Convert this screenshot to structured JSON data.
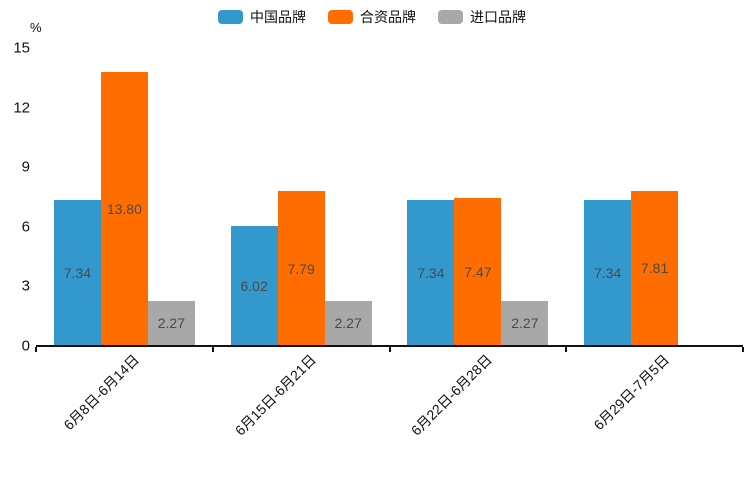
{
  "chart_data": {
    "type": "bar",
    "title": "",
    "xlabel": "",
    "ylabel": "%",
    "categories": [
      "6月8日-6月14日",
      "6月15日-6月21日",
      "6月22日-6月28日",
      "6月29日-7月5日"
    ],
    "series": [
      {
        "name": "中国品牌",
        "color": "#3398cc",
        "values": [
          7.34,
          6.02,
          7.34,
          7.34
        ],
        "labels": [
          "7.34",
          "6.02",
          "7.34",
          "7.34"
        ]
      },
      {
        "name": "合资品牌",
        "color": "#ff6d00",
        "values": [
          13.8,
          7.79,
          7.47,
          7.81
        ],
        "labels": [
          "13.80",
          "7.79",
          "7.47",
          "7.81"
        ]
      },
      {
        "name": "进口品牌",
        "color": "#a8a8a8",
        "values": [
          2.27,
          2.27,
          2.27,
          null
        ],
        "labels": [
          "2.27",
          "2.27",
          "2.27",
          null
        ]
      }
    ],
    "yticks": [
      0,
      3,
      6,
      9,
      12,
      15
    ],
    "ylim": [
      0,
      15
    ],
    "legend_position": "top",
    "grid": false,
    "value_labels_position": "inside-center"
  },
  "colors": {
    "background": "#ffffff",
    "axis": "#111111",
    "tick_text": "#111111",
    "bar_value_text": "#4a4a4a"
  }
}
